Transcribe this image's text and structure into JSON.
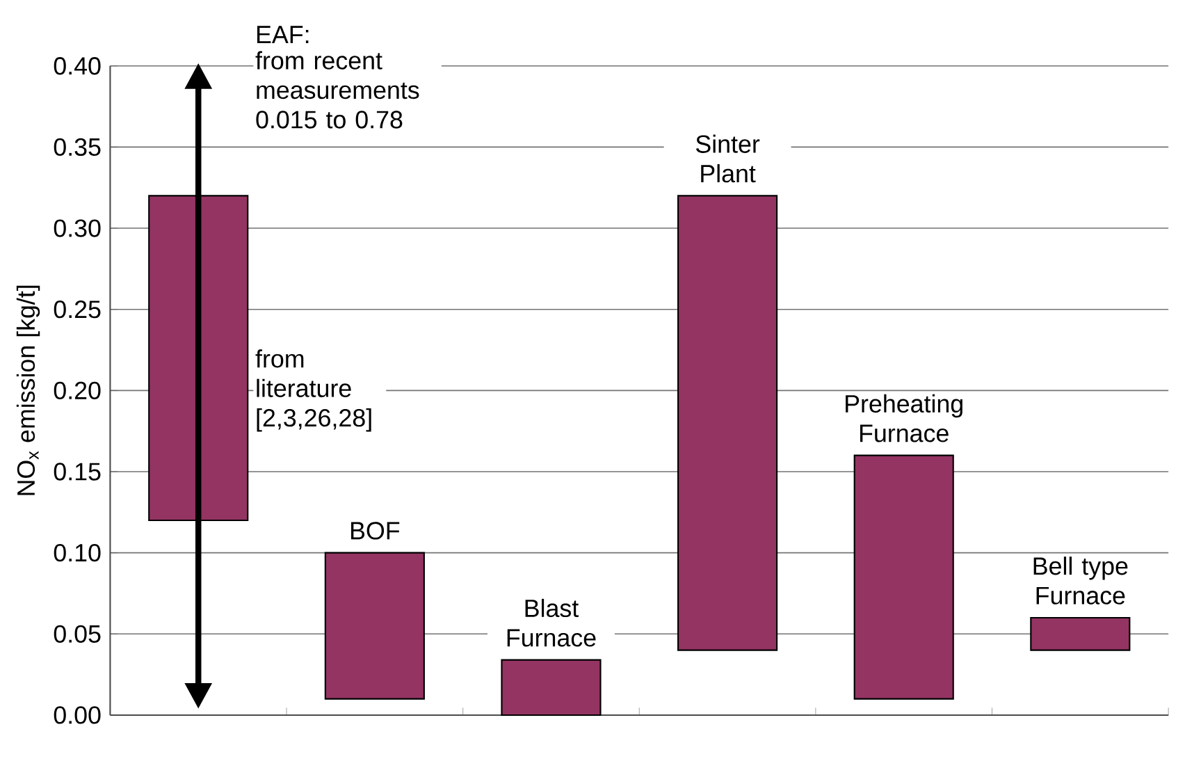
{
  "chart_data": {
    "type": "bar",
    "ylabel": "NO$_{x}$ emission [kg/t]",
    "categories": [
      null,
      null,
      null,
      null,
      null,
      null
    ],
    "base": [
      0.12,
      0.01,
      0.0,
      0.04,
      0.01,
      0.04
    ],
    "values": [
      0.2,
      0.09,
      0.034,
      0.28,
      0.15,
      0.02
    ],
    "color": "#943462",
    "ylim": [
      0,
      0.4
    ],
    "yticks": [
      {
        "value": 0,
        "label": "0.00"
      },
      {
        "value": 0.05,
        "label": "0.05"
      },
      {
        "value": 0.1,
        "label": "0.10"
      },
      {
        "value": 0.15,
        "label": "0.15"
      },
      {
        "value": 0.2,
        "label": "0.20"
      },
      {
        "value": 0.25,
        "label": "0.25"
      },
      {
        "value": 0.3,
        "label": "0.30"
      },
      {
        "value": 0.35,
        "label": "0.35"
      },
      {
        "value": 0.4,
        "label": "0.40"
      }
    ],
    "grid": "y",
    "annotations": [
      "EAF:",
      "from recent measurements 0.015 to 0.78",
      "from literature [2,3,26,28]",
      "BOF",
      "Blast Furnace",
      "Sinter Plant",
      "Preheating Furnace",
      "Bell type Furnace"
    ]
  }
}
